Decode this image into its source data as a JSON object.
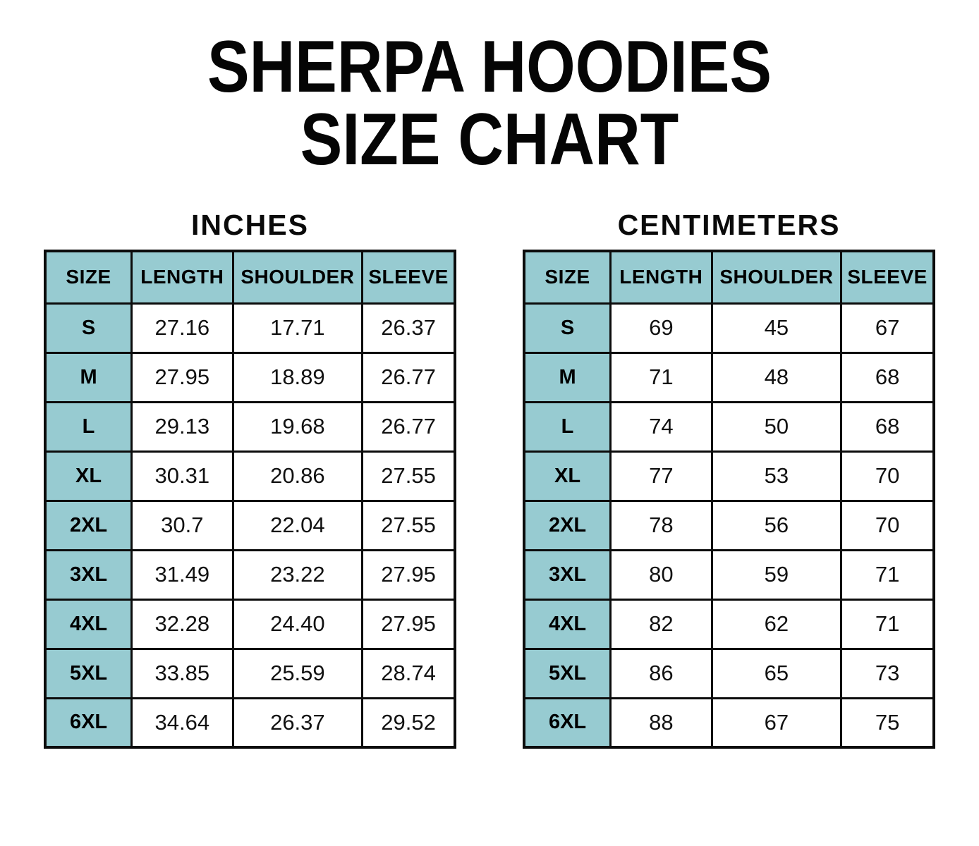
{
  "page_title": {
    "line1": "SHERPA HOODIES",
    "line2": "SIZE CHART"
  },
  "chart_data": [
    {
      "type": "table",
      "title": "INCHES",
      "unit": "inches",
      "columns": [
        "SIZE",
        "LENGTH",
        "SHOULDER",
        "SLEEVE"
      ],
      "rows": [
        [
          "S",
          "27.16",
          "17.71",
          "26.37"
        ],
        [
          "M",
          "27.95",
          "18.89",
          "26.77"
        ],
        [
          "L",
          "29.13",
          "19.68",
          "26.77"
        ],
        [
          "XL",
          "30.31",
          "20.86",
          "27.55"
        ],
        [
          "2XL",
          "30.7",
          "22.04",
          "27.55"
        ],
        [
          "3XL",
          "31.49",
          "23.22",
          "27.95"
        ],
        [
          "4XL",
          "32.28",
          "24.40",
          "27.95"
        ],
        [
          "5XL",
          "33.85",
          "25.59",
          "28.74"
        ],
        [
          "6XL",
          "34.64",
          "26.37",
          "29.52"
        ]
      ]
    },
    {
      "type": "table",
      "title": "CENTIMETERS",
      "unit": "centimeters",
      "columns": [
        "SIZE",
        "LENGTH",
        "SHOULDER",
        "SLEEVE"
      ],
      "rows": [
        [
          "S",
          "69",
          "45",
          "67"
        ],
        [
          "M",
          "71",
          "48",
          "68"
        ],
        [
          "L",
          "74",
          "50",
          "68"
        ],
        [
          "XL",
          "77",
          "53",
          "70"
        ],
        [
          "2XL",
          "78",
          "56",
          "70"
        ],
        [
          "3XL",
          "80",
          "59",
          "71"
        ],
        [
          "4XL",
          "82",
          "62",
          "71"
        ],
        [
          "5XL",
          "86",
          "65",
          "73"
        ],
        [
          "6XL",
          "88",
          "67",
          "75"
        ]
      ]
    }
  ],
  "colors": {
    "header_fill": "#97CBD1",
    "border": "#0C0C0C",
    "text": "#000000",
    "background": "#FFFFFF"
  }
}
